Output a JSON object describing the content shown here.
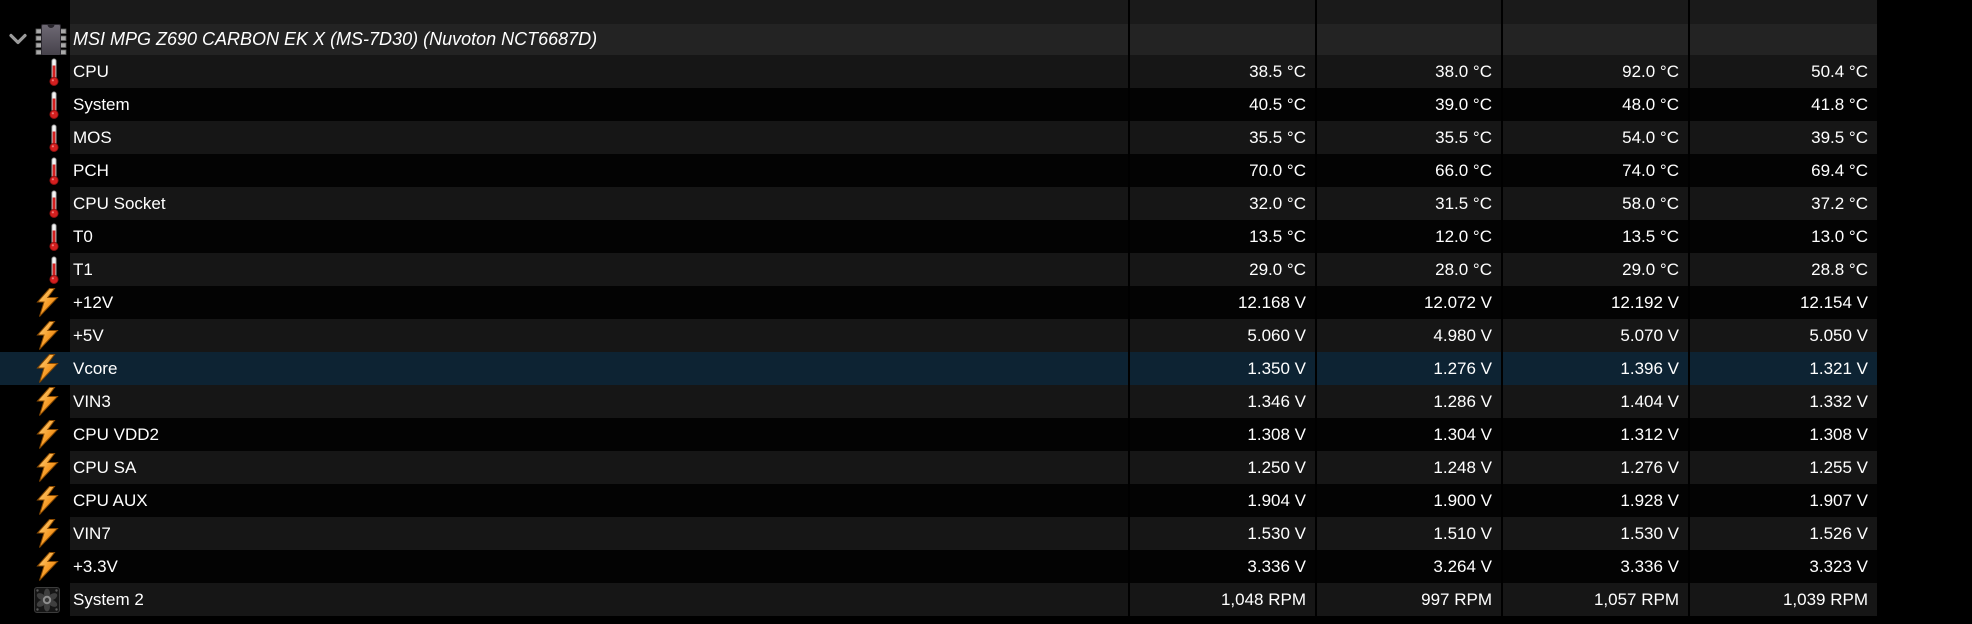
{
  "sensor_group": {
    "title": "MSI MPG Z690 CARBON EK X (MS-7D30) (Nuvoton NCT6687D)",
    "expand_icon": "chevron-down-icon",
    "device_icon": "chip-icon",
    "expanded": true
  },
  "colors": {
    "selection_bg": "#0d2333",
    "selection_border": "#1f4b6e",
    "row_stripe_light": "#161616",
    "row_stripe_dark": "#030303",
    "group_header_bg": "#232323",
    "text": "#ffffff",
    "thermometer_red": "#d41f1f",
    "bolt_orange": "#f79b25"
  },
  "rows": [
    {
      "icon": "thermometer-icon",
      "label": "CPU",
      "values": [
        "38.5 °C",
        "38.0 °C",
        "92.0 °C",
        "50.4 °C"
      ],
      "selected": false
    },
    {
      "icon": "thermometer-icon",
      "label": "System",
      "values": [
        "40.5 °C",
        "39.0 °C",
        "48.0 °C",
        "41.8 °C"
      ],
      "selected": false
    },
    {
      "icon": "thermometer-icon",
      "label": "MOS",
      "values": [
        "35.5 °C",
        "35.5 °C",
        "54.0 °C",
        "39.5 °C"
      ],
      "selected": false
    },
    {
      "icon": "thermometer-icon",
      "label": "PCH",
      "values": [
        "70.0 °C",
        "66.0 °C",
        "74.0 °C",
        "69.4 °C"
      ],
      "selected": false
    },
    {
      "icon": "thermometer-icon",
      "label": "CPU Socket",
      "values": [
        "32.0 °C",
        "31.5 °C",
        "58.0 °C",
        "37.2 °C"
      ],
      "selected": false
    },
    {
      "icon": "thermometer-icon",
      "label": "T0",
      "values": [
        "13.5 °C",
        "12.0 °C",
        "13.5 °C",
        "13.0 °C"
      ],
      "selected": false
    },
    {
      "icon": "thermometer-icon",
      "label": "T1",
      "values": [
        "29.0 °C",
        "28.0 °C",
        "29.0 °C",
        "28.8 °C"
      ],
      "selected": false
    },
    {
      "icon": "voltage-bolt-icon",
      "label": "+12V",
      "values": [
        "12.168 V",
        "12.072 V",
        "12.192 V",
        "12.154 V"
      ],
      "selected": false
    },
    {
      "icon": "voltage-bolt-icon",
      "label": "+5V",
      "values": [
        "5.060 V",
        "4.980 V",
        "5.070 V",
        "5.050 V"
      ],
      "selected": false
    },
    {
      "icon": "voltage-bolt-icon",
      "label": "Vcore",
      "values": [
        "1.350 V",
        "1.276 V",
        "1.396 V",
        "1.321 V"
      ],
      "selected": true
    },
    {
      "icon": "voltage-bolt-icon",
      "label": "VIN3",
      "values": [
        "1.346 V",
        "1.286 V",
        "1.404 V",
        "1.332 V"
      ],
      "selected": false
    },
    {
      "icon": "voltage-bolt-icon",
      "label": "CPU VDD2",
      "values": [
        "1.308 V",
        "1.304 V",
        "1.312 V",
        "1.308 V"
      ],
      "selected": false
    },
    {
      "icon": "voltage-bolt-icon",
      "label": "CPU SA",
      "values": [
        "1.250 V",
        "1.248 V",
        "1.276 V",
        "1.255 V"
      ],
      "selected": false
    },
    {
      "icon": "voltage-bolt-icon",
      "label": "CPU AUX",
      "values": [
        "1.904 V",
        "1.900 V",
        "1.928 V",
        "1.907 V"
      ],
      "selected": false
    },
    {
      "icon": "voltage-bolt-icon",
      "label": "VIN7",
      "values": [
        "1.530 V",
        "1.510 V",
        "1.530 V",
        "1.526 V"
      ],
      "selected": false
    },
    {
      "icon": "voltage-bolt-icon",
      "label": "+3.3V",
      "values": [
        "3.336 V",
        "3.264 V",
        "3.336 V",
        "3.323 V"
      ],
      "selected": false
    },
    {
      "icon": "fan-icon",
      "label": "System 2",
      "values": [
        "1,048 RPM",
        "997 RPM",
        "1,057 RPM",
        "1,039 RPM"
      ],
      "selected": false
    }
  ]
}
